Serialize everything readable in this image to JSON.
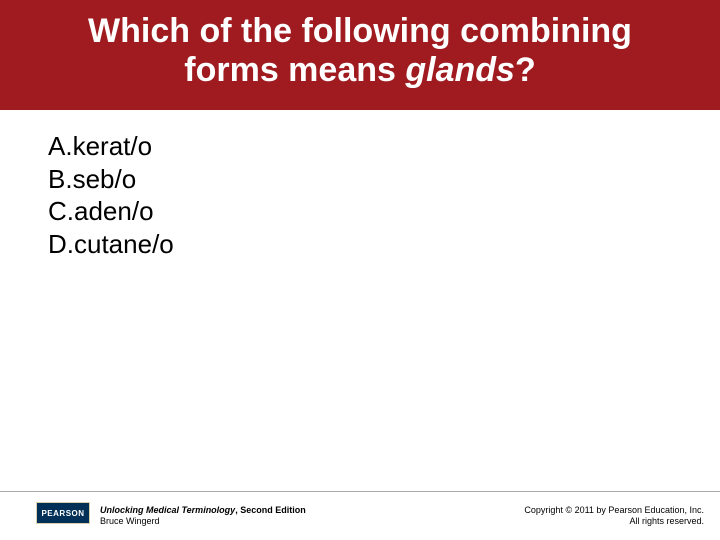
{
  "colors": {
    "title_bg": "#9f1b1f",
    "title_text": "#ffffff",
    "option_text": "#000000",
    "footer_rule": "#a9a9a9",
    "logo_bg": "#003057",
    "footer_text": "#000000"
  },
  "title": {
    "line1": "Which of the following combining",
    "line2_prefix": "forms means ",
    "line2_italic": "glands",
    "line2_suffix": "?",
    "fontsize": 34
  },
  "options": {
    "fontsize": 26,
    "items": [
      {
        "label": "A.",
        "text": "kerat/o"
      },
      {
        "label": "B.",
        "text": "seb/o"
      },
      {
        "label": "C.",
        "text": "aden/o"
      },
      {
        "label": "D.",
        "text": "cutane/o"
      }
    ]
  },
  "footer": {
    "rule_y_from_bottom": 48,
    "logo_text": "PEARSON",
    "book_title": "Unlocking Medical Terminology",
    "book_edition": ", Second Edition",
    "author": "Bruce Wingerd",
    "copyright1": "Copyright © 2011 by Pearson Education, Inc.",
    "copyright2": "All rights reserved."
  }
}
